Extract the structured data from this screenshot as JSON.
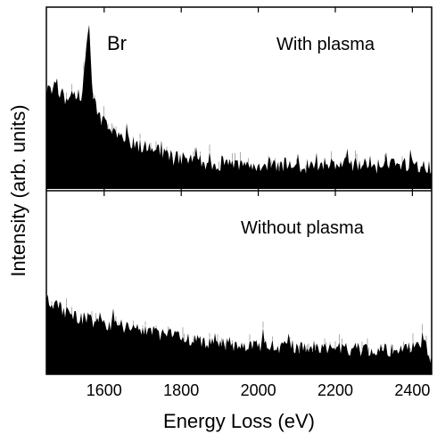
{
  "chart_data": {
    "type": "area",
    "xlabel": "Energy Loss (eV)",
    "ylabel": "Intensity (arb. units)",
    "xlim": [
      1450,
      2450
    ],
    "x_ticks": [
      "1600",
      "1800",
      "2000",
      "2200",
      "2400"
    ],
    "x_tick_values": [
      1600,
      1800,
      2000,
      2200,
      2400
    ],
    "y_ticks_shown": false,
    "layout": "two stacked panels sharing the x axis",
    "panels": [
      {
        "label": "With plasma",
        "peak_label": "Br",
        "peak_at": 1560,
        "ylim": [
          0,
          1
        ],
        "x": [
          1450,
          1480,
          1500,
          1520,
          1540,
          1550,
          1555,
          1560,
          1565,
          1570,
          1580,
          1600,
          1625,
          1650,
          1700,
          1750,
          1800,
          1850,
          1900,
          1950,
          2000,
          2050,
          2100,
          2150,
          2200,
          2250,
          2300,
          2350,
          2400,
          2450
        ],
        "values": [
          0.6,
          0.58,
          0.56,
          0.55,
          0.57,
          0.7,
          0.95,
          1.0,
          0.82,
          0.55,
          0.47,
          0.4,
          0.35,
          0.3,
          0.25,
          0.21,
          0.18,
          0.16,
          0.15,
          0.14,
          0.14,
          0.15,
          0.14,
          0.14,
          0.15,
          0.15,
          0.16,
          0.15,
          0.15,
          0.13
        ]
      },
      {
        "label": "Without plasma",
        "ylim": [
          0,
          1
        ],
        "x": [
          1450,
          1480,
          1500,
          1520,
          1550,
          1600,
          1650,
          1700,
          1750,
          1800,
          1850,
          1900,
          1950,
          2000,
          2050,
          2100,
          2150,
          2200,
          2250,
          2300,
          2350,
          2400,
          2430,
          2450
        ],
        "values": [
          0.48,
          0.44,
          0.4,
          0.38,
          0.36,
          0.33,
          0.31,
          0.28,
          0.26,
          0.24,
          0.22,
          0.2,
          0.19,
          0.19,
          0.18,
          0.18,
          0.17,
          0.17,
          0.16,
          0.16,
          0.16,
          0.17,
          0.22,
          0.1
        ]
      }
    ],
    "fill_color": "#000000",
    "noise_color": "#9a9a9a"
  }
}
